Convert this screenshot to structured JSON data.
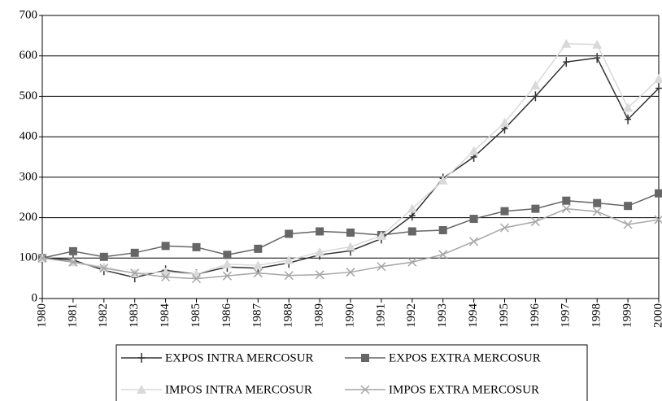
{
  "chart_data": {
    "type": "line",
    "x": [
      1980,
      1981,
      1982,
      1983,
      1984,
      1985,
      1986,
      1987,
      1988,
      1989,
      1990,
      1991,
      1992,
      1993,
      1994,
      1995,
      1996,
      1997,
      1998,
      1999,
      2000
    ],
    "xlim": [
      1980,
      2000
    ],
    "xticks": [
      1980,
      1981,
      1982,
      1983,
      1984,
      1985,
      1986,
      1987,
      1988,
      1989,
      1990,
      1991,
      1992,
      1993,
      1994,
      1995,
      1996,
      1997,
      1998,
      1999,
      2000
    ],
    "ylim": [
      0,
      700
    ],
    "yticks": [
      0,
      100,
      200,
      300,
      400,
      500,
      600,
      700
    ],
    "grid": true,
    "legend": "bottom",
    "series": [
      {
        "name": "EXPOS INTRA MERCOSUR",
        "color": "#333333",
        "marker": "plus",
        "values": [
          100,
          95,
          70,
          52,
          70,
          60,
          78,
          75,
          88,
          108,
          118,
          148,
          205,
          297,
          350,
          420,
          500,
          585,
          595,
          443,
          520
        ]
      },
      {
        "name": "EXPOS EXTRA MERCOSUR",
        "color": "#666666",
        "marker": "square",
        "values": [
          100,
          117,
          103,
          113,
          130,
          127,
          108,
          123,
          160,
          166,
          163,
          157,
          166,
          169,
          197,
          216,
          222,
          242,
          236,
          229,
          260
        ]
      },
      {
        "name": "IMPOS INTRA MERCOSUR",
        "color": "#d9d9d9",
        "marker": "triangle",
        "values": [
          100,
          90,
          78,
          62,
          65,
          60,
          85,
          82,
          95,
          115,
          128,
          155,
          222,
          292,
          365,
          435,
          527,
          630,
          628,
          472,
          543
        ]
      },
      {
        "name": "IMPOS EXTRA MERCOSUR",
        "color": "#a6a6a6",
        "marker": "x",
        "values": [
          100,
          90,
          75,
          63,
          53,
          49,
          56,
          63,
          57,
          59,
          65,
          79,
          90,
          109,
          141,
          175,
          190,
          222,
          215,
          183,
          195
        ]
      }
    ]
  }
}
